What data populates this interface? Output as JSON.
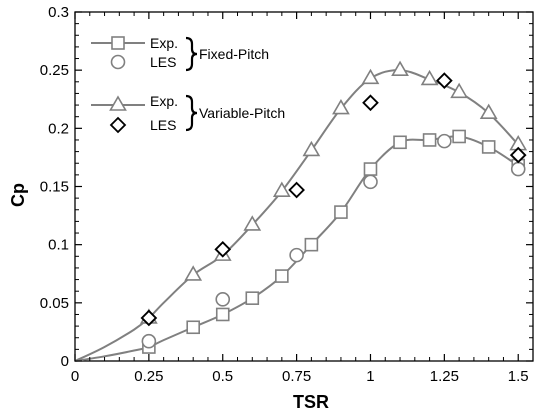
{
  "chart_data": {
    "type": "line",
    "xlabel": "TSR",
    "ylabel": "Cp",
    "xlim": [
      0,
      1.55
    ],
    "ylim": [
      0,
      0.3
    ],
    "xticks": [
      0,
      0.25,
      0.5,
      0.75,
      1,
      1.25,
      1.5
    ],
    "xtick_labels": [
      "0",
      "0.25",
      "0.5",
      "0.75",
      "1",
      "1.25",
      "1.5"
    ],
    "yticks": [
      0,
      0.05,
      0.1,
      0.15,
      0.2,
      0.25,
      0.3
    ],
    "ytick_labels": [
      "0",
      "0.05",
      "0.1",
      "0.15",
      "0.2",
      "0.25",
      "0.3"
    ],
    "grid": false,
    "legend_position": "top-left",
    "legend": {
      "fixed_exp": "Exp.",
      "fixed_les": "LES",
      "fixed_group": "Fixed-Pitch",
      "variable_exp": "Exp.",
      "variable_les": "LES",
      "variable_group": "Variable-Pitch"
    },
    "series": [
      {
        "name": "Exp.",
        "group": "Fixed-Pitch",
        "marker": "square",
        "line": true,
        "color": "#808080",
        "x": [
          0,
          0.1,
          0.2,
          0.25,
          0.3,
          0.4,
          0.5,
          0.6,
          0.7,
          0.8,
          0.9,
          1.0,
          1.1,
          1.2,
          1.3,
          1.4,
          1.5
        ],
        "y": [
          0,
          0.004,
          0.009,
          0.012,
          0.018,
          0.029,
          0.04,
          0.054,
          0.073,
          0.1,
          0.128,
          0.165,
          0.188,
          0.19,
          0.193,
          0.184,
          0.168
        ],
        "marker_x": [
          0.25,
          0.4,
          0.5,
          0.6,
          0.7,
          0.8,
          0.9,
          1.0,
          1.1,
          1.2,
          1.3,
          1.4,
          1.5
        ],
        "marker_y": [
          0.012,
          0.029,
          0.04,
          0.054,
          0.073,
          0.1,
          0.128,
          0.165,
          0.188,
          0.19,
          0.193,
          0.184,
          0.168
        ]
      },
      {
        "name": "LES",
        "group": "Fixed-Pitch",
        "marker": "circle",
        "line": false,
        "color": "#808080",
        "x": [
          0.25,
          0.5,
          0.75,
          1.0,
          1.25,
          1.5
        ],
        "y": [
          0.017,
          0.053,
          0.091,
          0.154,
          0.189,
          0.165
        ]
      },
      {
        "name": "Exp.",
        "group": "Variable-Pitch",
        "marker": "triangle",
        "line": true,
        "color": "#808080",
        "x": [
          0,
          0.1,
          0.2,
          0.25,
          0.3,
          0.4,
          0.5,
          0.6,
          0.7,
          0.8,
          0.9,
          1.0,
          1.1,
          1.2,
          1.3,
          1.4,
          1.5
        ],
        "y": [
          0,
          0.012,
          0.027,
          0.037,
          0.05,
          0.074,
          0.091,
          0.117,
          0.146,
          0.181,
          0.217,
          0.243,
          0.25,
          0.242,
          0.231,
          0.213,
          0.186
        ],
        "marker_x": [
          0.25,
          0.4,
          0.5,
          0.6,
          0.7,
          0.8,
          0.9,
          1.0,
          1.1,
          1.2,
          1.3,
          1.4,
          1.5
        ],
        "marker_y": [
          0.037,
          0.074,
          0.091,
          0.117,
          0.146,
          0.181,
          0.217,
          0.243,
          0.25,
          0.242,
          0.231,
          0.213,
          0.186
        ]
      },
      {
        "name": "LES",
        "group": "Variable-Pitch",
        "marker": "diamond",
        "line": false,
        "color": "#000000",
        "x": [
          0.25,
          0.5,
          0.75,
          1.0,
          1.25,
          1.5
        ],
        "y": [
          0.037,
          0.096,
          0.147,
          0.222,
          0.241,
          0.177
        ]
      }
    ]
  }
}
